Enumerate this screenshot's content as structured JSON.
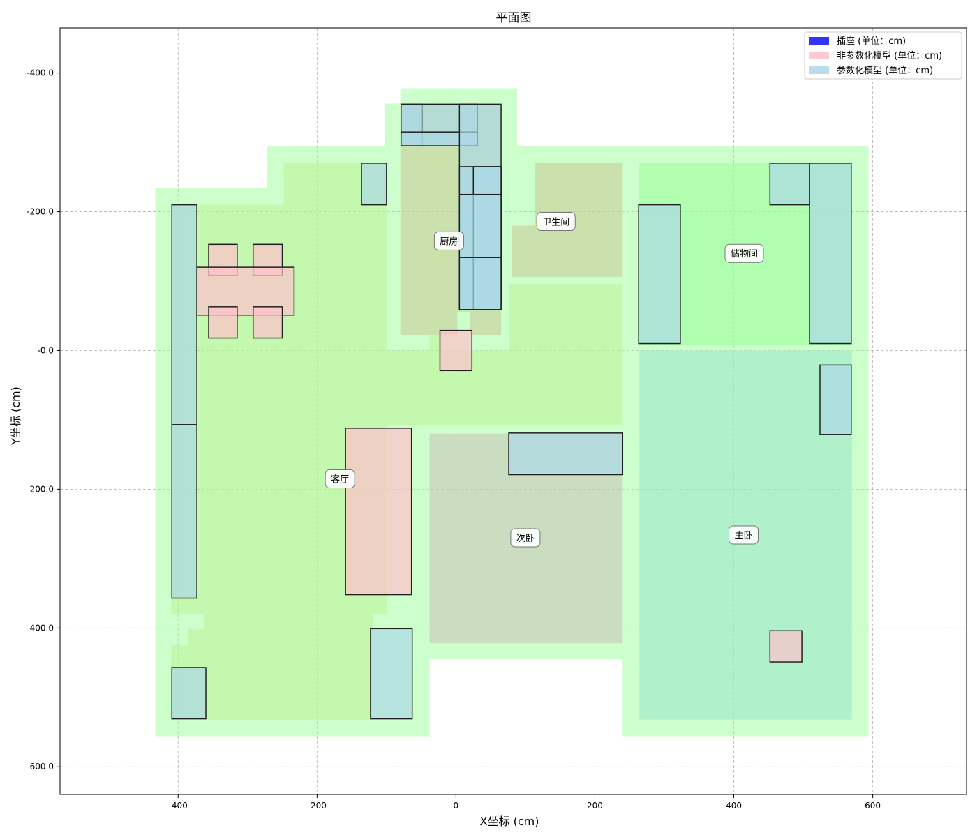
{
  "chart_data": {
    "type": "floor_plan",
    "title": "平面图",
    "xlabel": "X坐标 (cm)",
    "ylabel": "Y坐标 (cm)",
    "xlim": [
      -570,
      735
    ],
    "ylim": [
      -465,
      640
    ],
    "y_inverted": true,
    "grid": true,
    "x_ticks": [
      -400,
      -200,
      0,
      200,
      400,
      600
    ],
    "x_tick_labels": [
      "-400",
      "-200",
      "0",
      "200",
      "400",
      "600"
    ],
    "y_ticks": [
      -400,
      -200,
      0,
      200,
      400,
      600
    ],
    "y_tick_labels": [
      "-400.0",
      "-200.0",
      "-0.0",
      "200.0",
      "400.0",
      "600.0"
    ],
    "legend_position": "top-right",
    "legend": [
      {
        "label": "插座 (单位：cm)",
        "color": "#3333ff"
      },
      {
        "label": "非参数化模型 (单位：cm)",
        "color": "#ffc0cb"
      },
      {
        "label": "参数化模型 (单位：cm)",
        "color": "#add8e6"
      }
    ],
    "outline": [
      [
        -433,
        -234
      ],
      [
        -272,
        -234
      ],
      [
        -272,
        -294
      ],
      [
        -103,
        -294
      ],
      [
        -103,
        -356
      ],
      [
        -80,
        -356
      ],
      [
        -80,
        -378
      ],
      [
        88,
        -378
      ],
      [
        88,
        -294
      ],
      [
        594,
        -294
      ],
      [
        594,
        556
      ],
      [
        240,
        556
      ],
      [
        240,
        445
      ],
      [
        -38,
        445
      ],
      [
        -38,
        556
      ],
      [
        -433,
        556
      ]
    ],
    "room_regions": [
      {
        "name": "living",
        "color": "#b9f28f",
        "opacity": 0.5,
        "points": [
          [
            -410,
            -210
          ],
          [
            -248,
            -210
          ],
          [
            -248,
            -270
          ],
          [
            -100,
            -270
          ],
          [
            -100,
            0
          ],
          [
            -38,
            0
          ],
          [
            -38,
            -22
          ],
          [
            -20,
            -22
          ],
          [
            -20,
            0
          ],
          [
            76,
            0
          ],
          [
            76,
            -96
          ],
          [
            240,
            -96
          ],
          [
            240,
            108
          ],
          [
            -100,
            108
          ],
          [
            -100,
            380
          ],
          [
            -120,
            380
          ],
          [
            -120,
            532
          ],
          [
            -410,
            532
          ],
          [
            -410,
            425
          ],
          [
            -386,
            425
          ],
          [
            -386,
            402
          ],
          [
            -363,
            402
          ],
          [
            -363,
            380
          ],
          [
            -410,
            380
          ]
        ]
      },
      {
        "name": "kitchen",
        "color": "#c8c896",
        "opacity": 0.55,
        "points": [
          [
            -80,
            -356
          ],
          [
            65,
            -356
          ],
          [
            65,
            -22
          ],
          [
            20,
            -22
          ],
          [
            20,
            -56
          ],
          [
            2,
            -56
          ],
          [
            2,
            -22
          ],
          [
            -80,
            -22
          ]
        ]
      },
      {
        "name": "bathroom",
        "color": "#c8c896",
        "opacity": 0.55,
        "points": [
          [
            114,
            -270
          ],
          [
            240,
            -270
          ],
          [
            240,
            -106
          ],
          [
            80,
            -106
          ],
          [
            80,
            -180
          ],
          [
            114,
            -180
          ]
        ]
      },
      {
        "name": "storage",
        "color": "#99ff99",
        "opacity": 0.55,
        "points": [
          [
            264,
            -270
          ],
          [
            570,
            -270
          ],
          [
            570,
            -8
          ],
          [
            264,
            -8
          ]
        ]
      },
      {
        "name": "master",
        "color": "#99e6cc",
        "opacity": 0.55,
        "points": [
          [
            264,
            0
          ],
          [
            570,
            0
          ],
          [
            570,
            532
          ],
          [
            264,
            532
          ]
        ]
      },
      {
        "name": "second",
        "color": "#c8b4b4",
        "opacity": 0.45,
        "points": [
          [
            -38,
            120
          ],
          [
            240,
            120
          ],
          [
            240,
            422
          ],
          [
            -38,
            422
          ]
        ]
      }
    ],
    "room_labels": [
      {
        "text": "厨房",
        "x": -10,
        "y": -158
      },
      {
        "text": "卫生间",
        "x": 144,
        "y": -186
      },
      {
        "text": "储物间",
        "x": 415,
        "y": -140
      },
      {
        "text": "客厅",
        "x": -167,
        "y": 185
      },
      {
        "text": "次卧",
        "x": 100,
        "y": 270
      },
      {
        "text": "主卧",
        "x": 414,
        "y": 266
      }
    ],
    "parametric_models": [
      {
        "x0": -409,
        "y0": -210,
        "x1": -373,
        "y1": 107
      },
      {
        "x0": -409,
        "y0": 107,
        "x1": -373,
        "y1": 357
      },
      {
        "x0": -409,
        "y0": 457,
        "x1": -360,
        "y1": 531
      },
      {
        "x0": -136,
        "y0": -270,
        "x1": -100,
        "y1": -210
      },
      {
        "x0": -79,
        "y0": -355,
        "x1": 31,
        "y1": -295
      },
      {
        "x0": -79,
        "y0": -355,
        "x1": -49,
        "y1": -295
      },
      {
        "x0": -79,
        "y0": -315,
        "x1": 31,
        "y1": -295
      },
      {
        "x0": 5,
        "y0": -355,
        "x1": 65,
        "y1": -59
      },
      {
        "x0": 5,
        "y0": -265,
        "x1": 65,
        "y1": -59
      },
      {
        "x0": 25,
        "y0": -265,
        "x1": 65,
        "y1": -59
      },
      {
        "x0": 5,
        "y0": -225,
        "x1": 65,
        "y1": -134
      },
      {
        "x0": 5,
        "y0": -134,
        "x1": 65,
        "y1": -59
      },
      {
        "x0": 76,
        "y0": 119,
        "x1": 240,
        "y1": 179
      },
      {
        "x0": -123,
        "y0": 401,
        "x1": -63,
        "y1": 531
      },
      {
        "x0": 263,
        "y0": -210,
        "x1": 323,
        "y1": -10
      },
      {
        "x0": 452,
        "y0": -270,
        "x1": 509,
        "y1": -210
      },
      {
        "x0": 509,
        "y0": -270,
        "x1": 569,
        "y1": -10
      },
      {
        "x0": 524,
        "y0": 21,
        "x1": 569,
        "y1": 121
      }
    ],
    "non_parametric_models": [
      {
        "x0": -356,
        "y0": -153,
        "x1": -315,
        "y1": -108
      },
      {
        "x0": -292,
        "y0": -153,
        "x1": -250,
        "y1": -108
      },
      {
        "x0": -373,
        "y0": -120,
        "x1": -233,
        "y1": -51
      },
      {
        "x0": -356,
        "y0": -63,
        "x1": -315,
        "y1": -18
      },
      {
        "x0": -292,
        "y0": -63,
        "x1": -250,
        "y1": -18
      },
      {
        "x0": -23,
        "y0": -29,
        "x1": 23,
        "y1": 29
      },
      {
        "x0": -159,
        "y0": 112,
        "x1": -64,
        "y1": 352
      },
      {
        "x0": 452,
        "y0": 404,
        "x1": 498,
        "y1": 449
      }
    ]
  }
}
